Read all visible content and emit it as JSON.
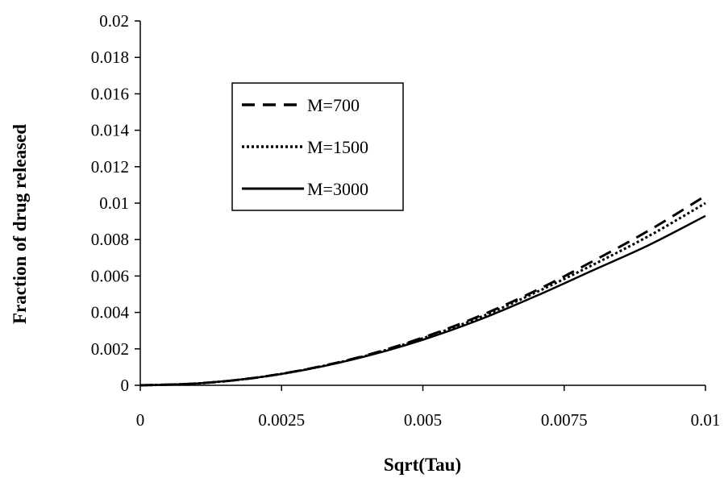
{
  "chart_data": {
    "type": "line",
    "xlabel": "Sqrt(Tau)",
    "ylabel": "Fraction of drug released",
    "xlim": [
      0,
      0.01
    ],
    "ylim": [
      0,
      0.02
    ],
    "x_ticks": [
      "0",
      "0.0025",
      "0.005",
      "0.0075",
      "0.01"
    ],
    "y_ticks": [
      "0",
      "0.002",
      "0.004",
      "0.006",
      "0.008",
      "0.01",
      "0.012",
      "0.014",
      "0.016",
      "0.018",
      "0.02"
    ],
    "grid": false,
    "legend_position": "upper-left inside",
    "series": [
      {
        "name": "M=700",
        "style": "dashed",
        "color": "#000000",
        "x": [
          0,
          0.001,
          0.002,
          0.003,
          0.004,
          0.005,
          0.006,
          0.007,
          0.008,
          0.009,
          0.01
        ],
        "y": [
          0,
          0.0001,
          0.0004,
          0.00092,
          0.00165,
          0.00262,
          0.0038,
          0.0052,
          0.0068,
          0.0085,
          0.0104
        ]
      },
      {
        "name": "M=1500",
        "style": "dotted",
        "color": "#000000",
        "x": [
          0,
          0.001,
          0.002,
          0.003,
          0.004,
          0.005,
          0.006,
          0.007,
          0.008,
          0.009,
          0.01
        ],
        "y": [
          0,
          0.0001,
          0.0004,
          0.00091,
          0.00163,
          0.00258,
          0.00372,
          0.0051,
          0.0066,
          0.0082,
          0.01
        ]
      },
      {
        "name": "M=3000",
        "style": "solid",
        "color": "#000000",
        "x": [
          0,
          0.001,
          0.002,
          0.003,
          0.004,
          0.005,
          0.006,
          0.007,
          0.008,
          0.009,
          0.01
        ],
        "y": [
          0,
          0.0001,
          0.0004,
          0.0009,
          0.0016,
          0.0025,
          0.0036,
          0.0049,
          0.0063,
          0.0077,
          0.0093
        ]
      }
    ]
  }
}
